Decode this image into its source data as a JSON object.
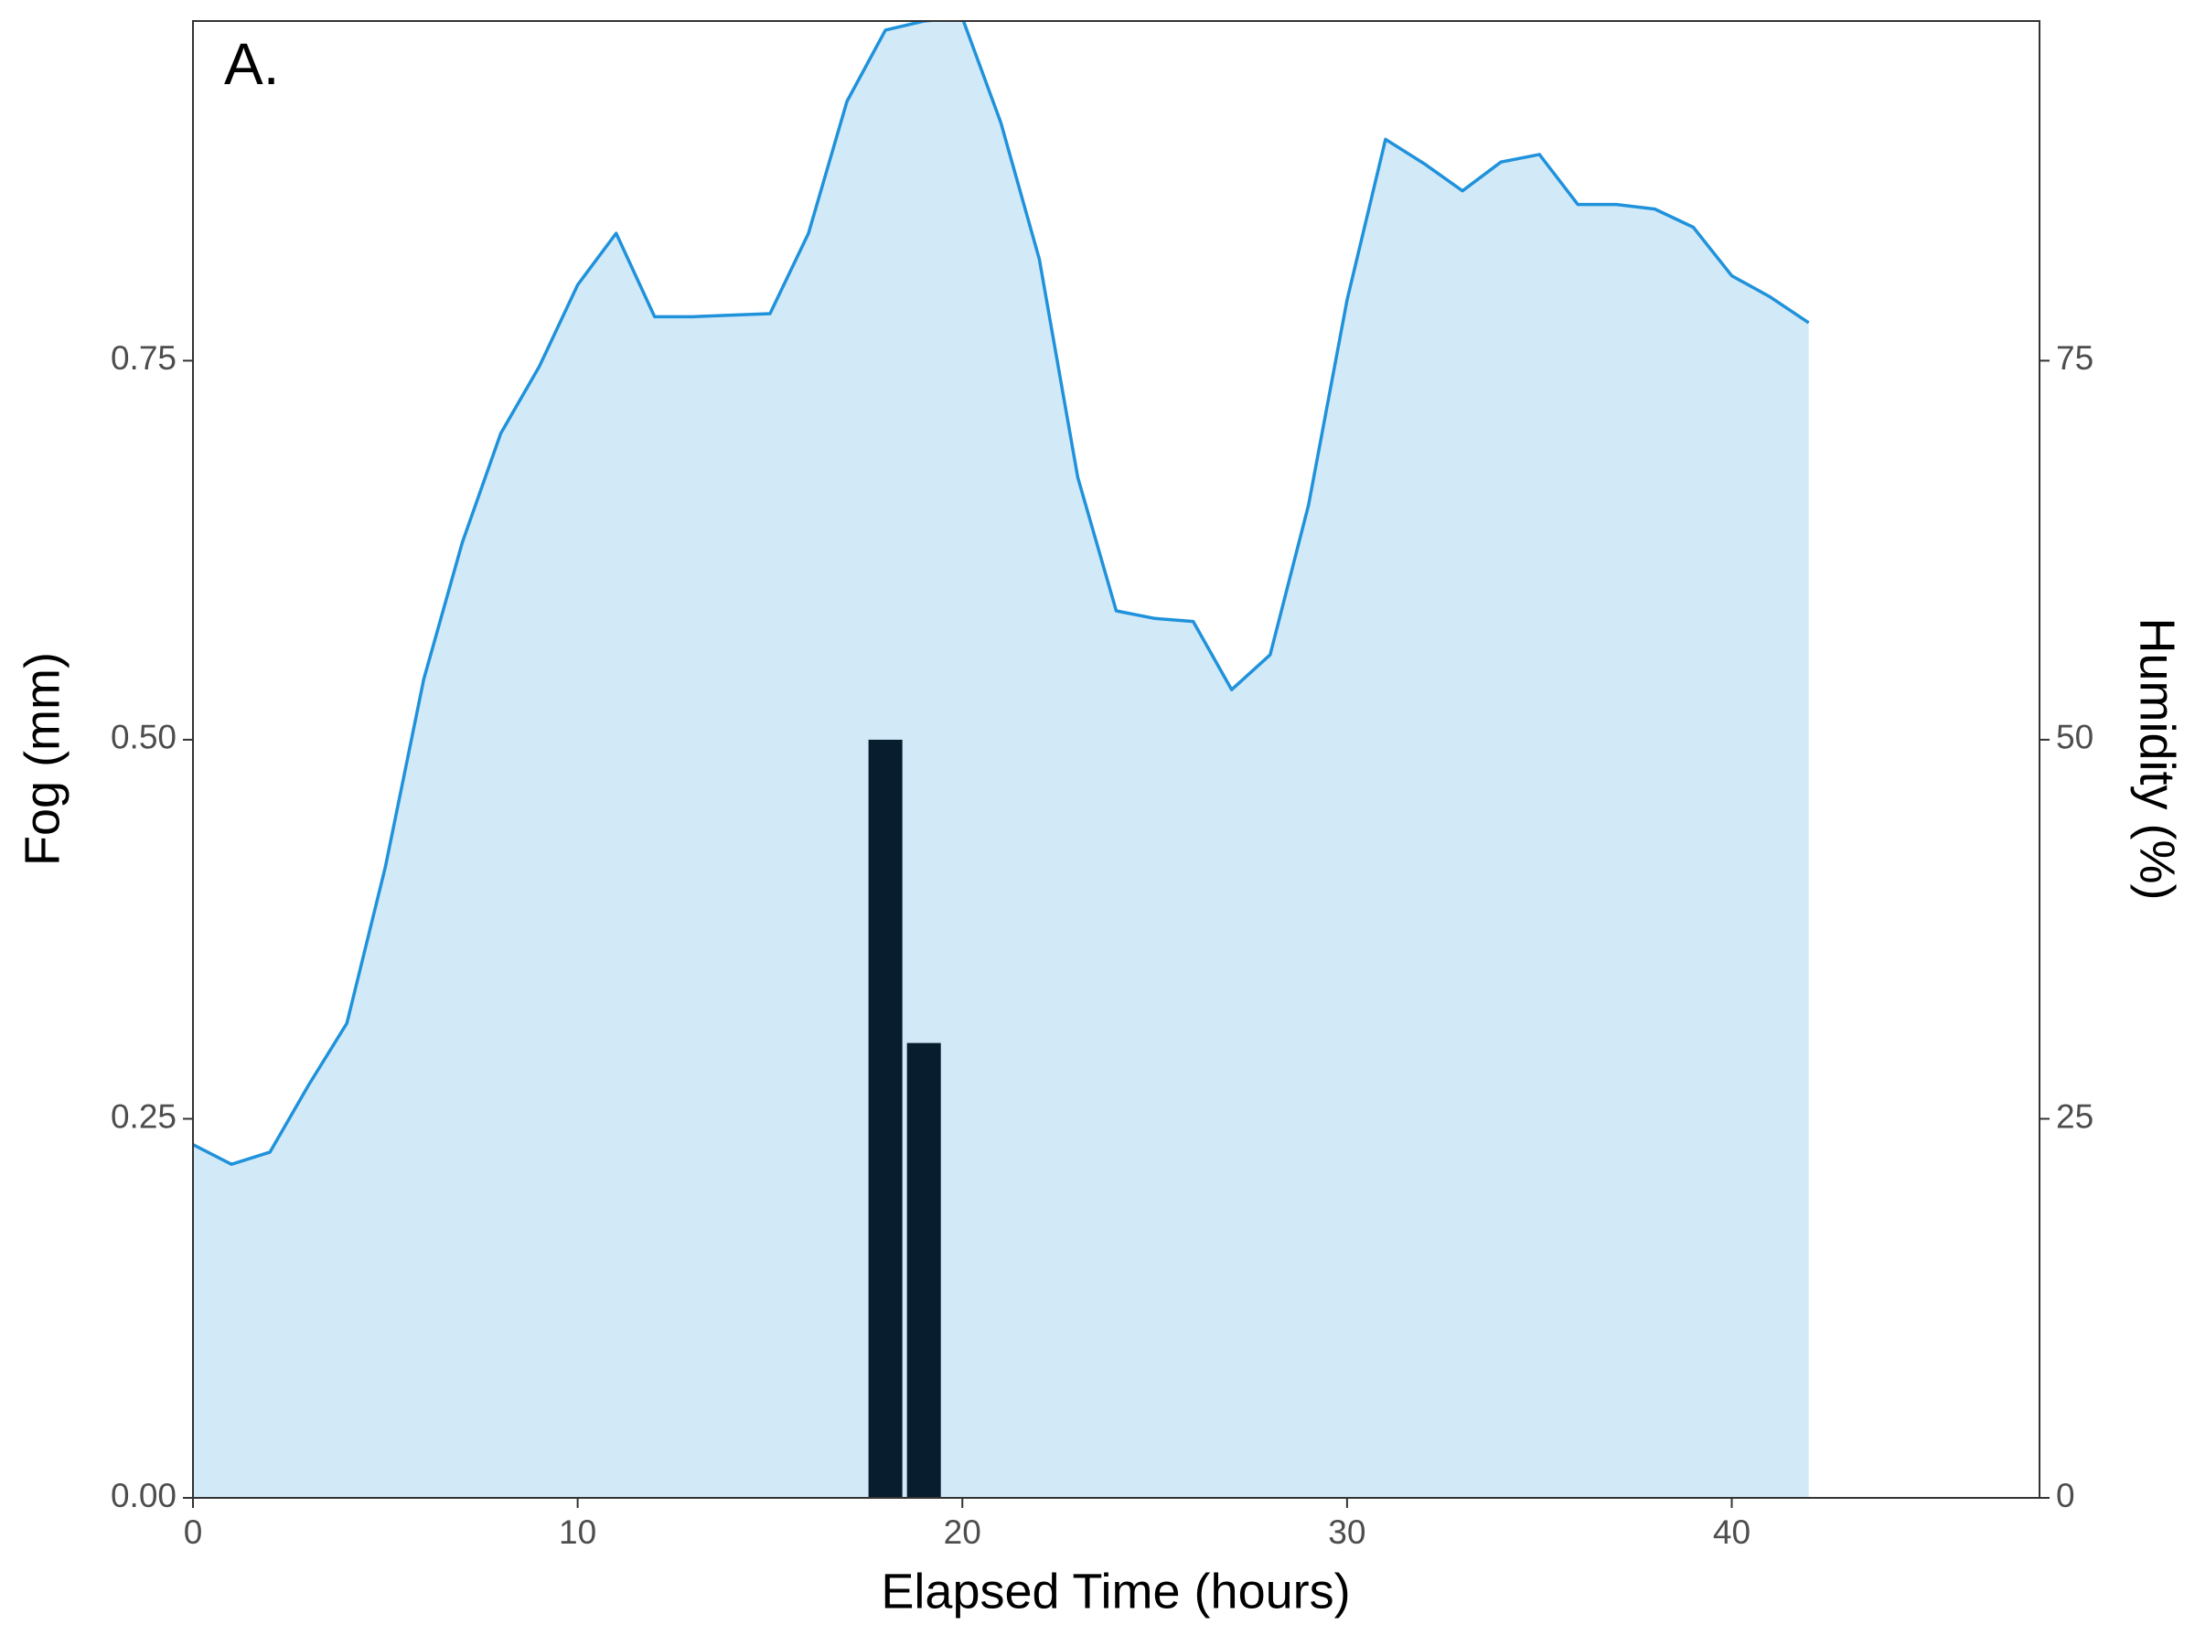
{
  "chart_data": {
    "type": "combo",
    "annotation": "A.",
    "x_label": "Elapsed Time (hours)",
    "y_label": "Fog (mm)",
    "y2_label": "Humidity (%)",
    "xlim": [
      0,
      48
    ],
    "xticks": [
      0,
      10,
      20,
      30,
      40
    ],
    "ylim": [
      0,
      0.974
    ],
    "yticks": [
      {
        "value": 0,
        "label": "0.00"
      },
      {
        "value": 0.25,
        "label": "0.25"
      },
      {
        "value": 0.5,
        "label": "0.50"
      },
      {
        "value": 0.75,
        "label": "0.75"
      }
    ],
    "y2lim": [
      0,
      97.4
    ],
    "y2ticks": [
      0,
      25,
      50,
      75
    ],
    "series": [
      {
        "type": "area",
        "axis": "y2",
        "color": "#1f92db",
        "fill": "#d2e9f8",
        "x": [
          0,
          1,
          2,
          3,
          4,
          5,
          6,
          7,
          8,
          9,
          10,
          11,
          12,
          13,
          14,
          15,
          16,
          17,
          18,
          19,
          20,
          21,
          22,
          23,
          24,
          25,
          26,
          27,
          28,
          29,
          30,
          31,
          32,
          33,
          34,
          35,
          36,
          37,
          38,
          39,
          40,
          41,
          42
        ],
        "values": [
          23.3,
          22.0,
          22.8,
          27.2,
          31.3,
          41.6,
          54.0,
          63.0,
          70.2,
          74.6,
          80.0,
          83.4,
          77.9,
          77.9,
          78.0,
          78.1,
          83.4,
          92.1,
          96.8,
          97.4,
          97.6,
          90.7,
          81.7,
          67.3,
          58.5,
          58.0,
          57.8,
          53.3,
          55.6,
          65.5,
          79.0,
          89.6,
          88.0,
          86.2,
          88.1,
          88.6,
          85.3,
          85.3,
          85.0,
          83.8,
          80.6,
          79.2,
          77.5
        ]
      },
      {
        "type": "bar",
        "axis": "y",
        "color": "#081e2e",
        "x": [
          18,
          19
        ],
        "values": [
          0.5,
          0.3
        ]
      }
    ]
  }
}
